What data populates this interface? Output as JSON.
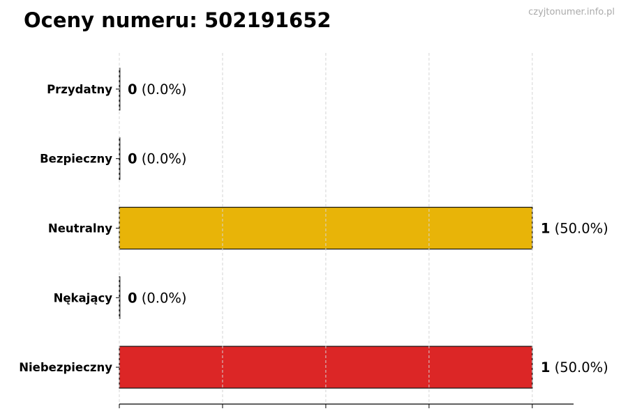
{
  "chart_data": {
    "type": "bar",
    "orientation": "horizontal",
    "title": "Oceny numeru: 502191652",
    "watermark": "czyjtonumer.info.pl",
    "categories": [
      "Przydatny",
      "Bezpieczny",
      "Neutralny",
      "Nękający",
      "Niebezpieczny"
    ],
    "values": [
      0,
      0,
      1,
      0,
      1
    ],
    "percent_labels": [
      "(0.0%)",
      "(0.0%)",
      "(50.0%)",
      "(0.0%)",
      "(50.0%)"
    ],
    "colors": {
      "Neutralny": "#E8B408",
      "Niebezpieczny": "#DC2626"
    },
    "xlim": [
      0,
      1.1
    ],
    "xticks": [
      0,
      0.25,
      0.5,
      0.75,
      1.0
    ],
    "xtick_labels_shown": false,
    "grid": "x, dashed",
    "xlabel": "",
    "ylabel": ""
  }
}
